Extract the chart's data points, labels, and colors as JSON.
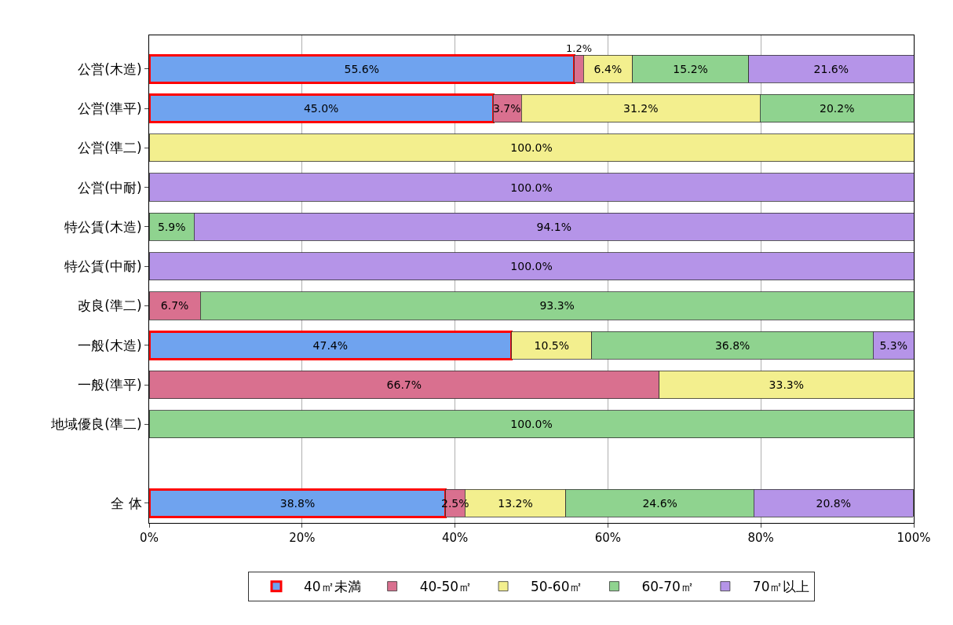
{
  "chart_data": {
    "type": "bar",
    "orientation": "horizontal",
    "stacked": true,
    "categories": [
      "公営(木造)",
      "公営(準平)",
      "公営(準二)",
      "公営(中耐)",
      "特公賃(木造)",
      "特公賃(中耐)",
      "改良(準二)",
      "一般(木造)",
      "一般(準平)",
      "地域優良(準二)",
      null,
      "全 体"
    ],
    "series": [
      {
        "name": "40㎡未満",
        "color": "#6fa3ef",
        "values": [
          55.6,
          45.0,
          null,
          null,
          null,
          null,
          null,
          47.4,
          null,
          null,
          null,
          38.8
        ],
        "value_labels": [
          "55.6%",
          "45.0%",
          null,
          null,
          null,
          null,
          null,
          "47.4%",
          null,
          null,
          null,
          "38.8%"
        ]
      },
      {
        "name": "40-50㎡",
        "color": "#d9708f",
        "values": [
          1.2,
          3.7,
          null,
          null,
          null,
          null,
          6.7,
          null,
          66.7,
          null,
          null,
          2.5
        ],
        "value_labels": [
          "1.2%",
          "3.7%",
          null,
          null,
          null,
          null,
          "6.7%",
          null,
          "66.7%",
          null,
          null,
          "2.5%"
        ]
      },
      {
        "name": "50-60㎡",
        "color": "#f3ef8e",
        "values": [
          6.4,
          31.2,
          100.0,
          null,
          null,
          null,
          null,
          10.5,
          33.3,
          null,
          null,
          13.2
        ],
        "value_labels": [
          "6.4%",
          "31.2%",
          "100.0%",
          null,
          null,
          null,
          null,
          "10.5%",
          "33.3%",
          null,
          null,
          "13.2%"
        ]
      },
      {
        "name": "60-70㎡",
        "color": "#8fd38f",
        "values": [
          15.2,
          20.2,
          null,
          null,
          5.9,
          null,
          93.3,
          36.8,
          null,
          100.0,
          null,
          24.6
        ],
        "value_labels": [
          "15.2%",
          "20.2%",
          null,
          null,
          "5.9%",
          null,
          "93.3%",
          "36.8%",
          null,
          "100.0%",
          null,
          "24.6%"
        ]
      },
      {
        "name": "70㎡以上",
        "color": "#b594e8",
        "values": [
          21.6,
          null,
          null,
          100.0,
          94.1,
          100.0,
          null,
          5.3,
          null,
          null,
          null,
          20.8
        ],
        "value_labels": [
          "21.6%",
          null,
          null,
          "100.0%",
          "94.1%",
          "100.0%",
          null,
          "5.3%",
          null,
          null,
          null,
          "20.8%"
        ]
      }
    ],
    "xlim": [
      0,
      100
    ],
    "xticks": [
      {
        "value": 0,
        "label": "0%"
      },
      {
        "value": 20,
        "label": "20%"
      },
      {
        "value": 40,
        "label": "40%"
      },
      {
        "value": 60,
        "label": "60%"
      },
      {
        "value": 80,
        "label": "80%"
      },
      {
        "value": 100,
        "label": "100%"
      }
    ],
    "grid": "x",
    "legend": "bottom"
  }
}
